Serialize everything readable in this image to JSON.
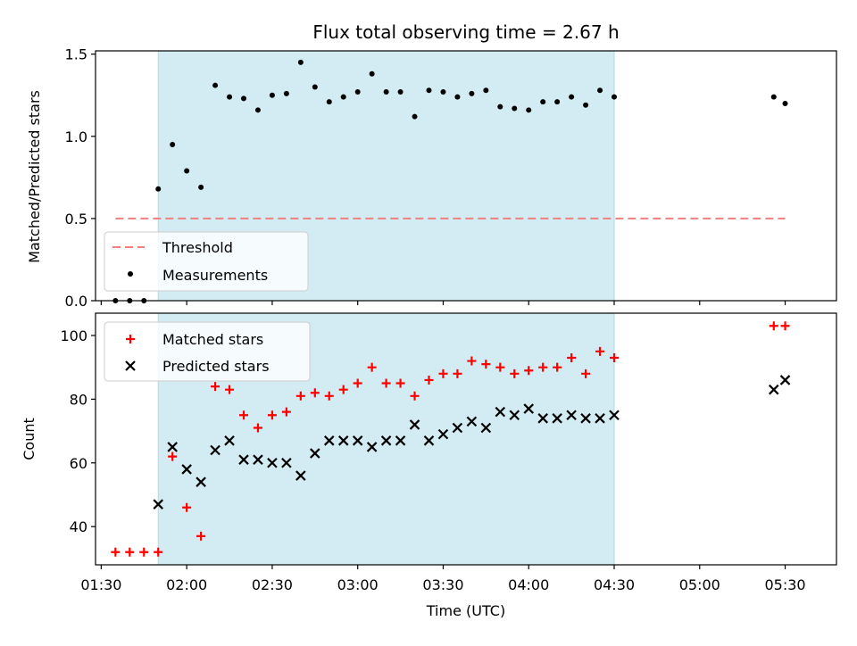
{
  "chart_data": [
    {
      "type": "scatter",
      "title": "Flux total observing time = 2.67 h",
      "xlabel": "",
      "ylabel": "Matched/Predicted stars",
      "xlim": [
        88,
        348
      ],
      "ylim": [
        0,
        1.52
      ],
      "yticks": [
        0.0,
        0.5,
        1.0,
        1.5
      ],
      "yticklabels": [
        "0.0",
        "0.5",
        "1.0",
        "1.5"
      ],
      "shaded_span": {
        "x0": 110,
        "x1": 270,
        "color": "#d3ebf2"
      },
      "threshold": {
        "name": "Threshold",
        "y": 0.5,
        "x": [
          95,
          330
        ],
        "color": "#f08080"
      },
      "legend": [
        "Threshold",
        "Measurements"
      ],
      "legend_loc": "lower-left",
      "series": [
        {
          "name": "Measurements",
          "color": "#000000",
          "marker": "dot",
          "x": [
            95,
            100,
            105,
            110,
            115,
            120,
            125,
            130,
            135,
            140,
            145,
            150,
            155,
            160,
            165,
            170,
            175,
            180,
            185,
            190,
            195,
            200,
            205,
            210,
            215,
            220,
            225,
            230,
            235,
            240,
            245,
            250,
            255,
            260,
            265,
            270,
            326,
            330
          ],
          "values": [
            0.0,
            0.0,
            0.0,
            0.68,
            0.95,
            0.79,
            0.69,
            1.31,
            1.24,
            1.23,
            1.16,
            1.25,
            1.26,
            1.45,
            1.3,
            1.21,
            1.24,
            1.27,
            1.38,
            1.27,
            1.27,
            1.12,
            1.28,
            1.27,
            1.24,
            1.26,
            1.28,
            1.18,
            1.17,
            1.16,
            1.21,
            1.21,
            1.24,
            1.19,
            1.28,
            1.24,
            1.24,
            1.2
          ]
        }
      ]
    },
    {
      "type": "scatter",
      "title": "",
      "xlabel": "Time (UTC)",
      "ylabel": "Count",
      "xlim": [
        88,
        348
      ],
      "ylim": [
        28,
        107
      ],
      "yticks": [
        40,
        60,
        80,
        100
      ],
      "yticklabels": [
        "40",
        "60",
        "80",
        "100"
      ],
      "xticks": [
        90,
        120,
        150,
        180,
        210,
        240,
        270,
        300,
        330
      ],
      "xticklabels": [
        "01:30",
        "02:00",
        "02:30",
        "03:00",
        "03:30",
        "04:00",
        "04:30",
        "05:00",
        "05:30"
      ],
      "shaded_span": {
        "x0": 110,
        "x1": 270,
        "color": "#d3ebf2"
      },
      "legend": [
        "Matched stars",
        "Predicted stars"
      ],
      "legend_loc": "upper-left",
      "series": [
        {
          "name": "Matched stars",
          "color": "#ff0000",
          "marker": "plus",
          "x": [
            95,
            100,
            105,
            110,
            115,
            120,
            125,
            130,
            135,
            140,
            145,
            150,
            155,
            160,
            165,
            170,
            175,
            180,
            185,
            190,
            195,
            200,
            205,
            210,
            215,
            220,
            225,
            230,
            235,
            240,
            245,
            250,
            255,
            260,
            265,
            270,
            326,
            330
          ],
          "values": [
            32,
            32,
            32,
            32,
            62,
            46,
            37,
            84,
            83,
            75,
            71,
            75,
            76,
            81,
            82,
            81,
            83,
            85,
            90,
            85,
            85,
            81,
            86,
            88,
            88,
            92,
            91,
            90,
            88,
            89,
            90,
            90,
            93,
            88,
            95,
            93,
            103,
            103
          ]
        },
        {
          "name": "Predicted stars",
          "color": "#000000",
          "marker": "x",
          "x": [
            110,
            115,
            120,
            125,
            130,
            135,
            140,
            145,
            150,
            155,
            160,
            165,
            170,
            175,
            180,
            185,
            190,
            195,
            200,
            205,
            210,
            215,
            220,
            225,
            230,
            235,
            240,
            245,
            250,
            255,
            260,
            265,
            270,
            326,
            330
          ],
          "values": [
            47,
            65,
            58,
            54,
            64,
            67,
            61,
            61,
            60,
            60,
            56,
            63,
            67,
            67,
            67,
            65,
            67,
            67,
            72,
            67,
            69,
            71,
            73,
            71,
            76,
            75,
            77,
            74,
            74,
            75,
            74,
            74,
            75,
            83,
            86
          ]
        }
      ]
    }
  ]
}
